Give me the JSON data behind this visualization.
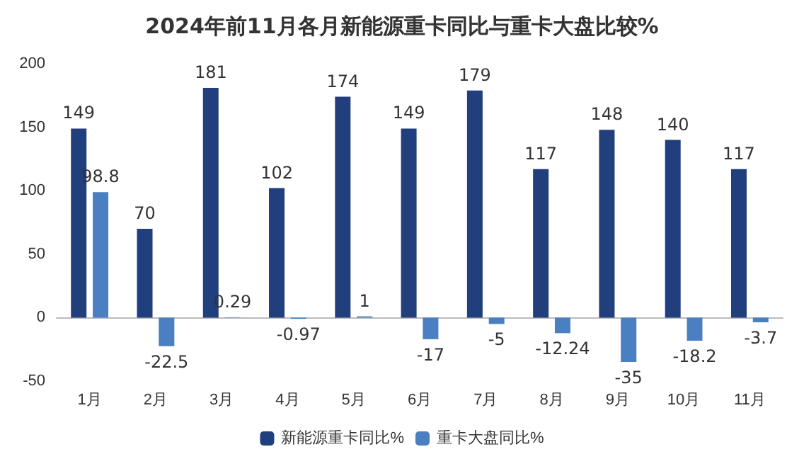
{
  "chart_data": {
    "type": "bar",
    "title": "2024年前11月各月新能源重卡同比与重卡大盘比较%",
    "categories": [
      "1月",
      "2月",
      "3月",
      "4月",
      "5月",
      "6月",
      "7月",
      "8月",
      "9月",
      "10月",
      "11月"
    ],
    "series": [
      {
        "name": "新能源重卡同比%",
        "color": "#203f7c",
        "values": [
          149,
          70,
          181,
          102,
          174,
          149,
          179,
          117,
          148,
          140,
          117
        ]
      },
      {
        "name": "重卡大盘同比%",
        "color": "#4a7fc1",
        "values": [
          98.8,
          -22.5,
          0.29,
          -0.97,
          1,
          -17,
          -5,
          -12.24,
          -35,
          -18.2,
          -3.7
        ]
      }
    ],
    "ylim": [
      -50,
      200
    ],
    "yticks": [
      -50,
      0,
      50,
      100,
      150,
      200
    ],
    "legend": "bottom",
    "data_labels": true
  }
}
